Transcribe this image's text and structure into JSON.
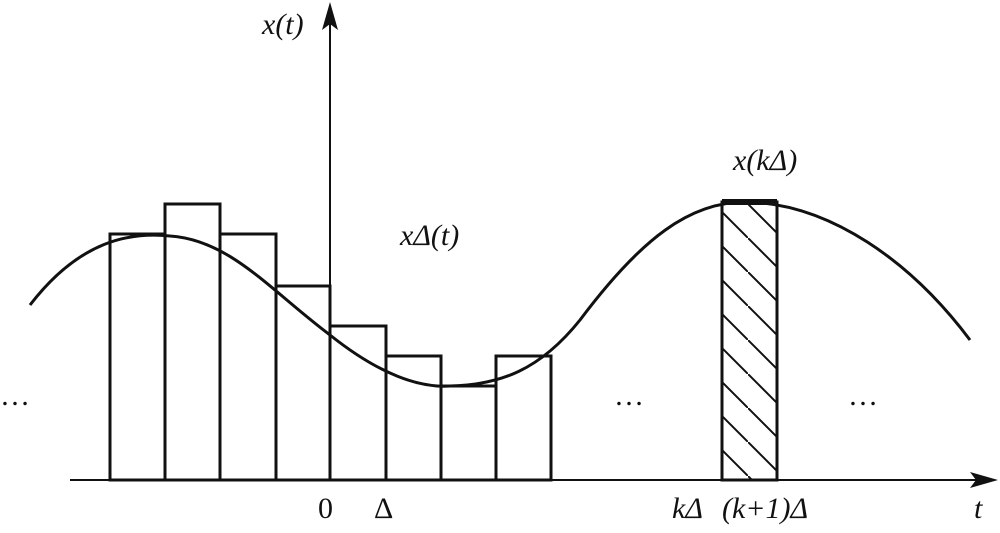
{
  "axes": {
    "y_label": "x(t)",
    "x_label": "t"
  },
  "labels": {
    "staircase": "xΔ(t)",
    "sample": "x(kΔ)"
  },
  "ticks": {
    "origin": "0",
    "delta": "Δ",
    "k_delta": "kΔ",
    "k1_delta": "(k+1)Δ"
  },
  "ellipses": [
    "…",
    "…",
    "…"
  ]
}
